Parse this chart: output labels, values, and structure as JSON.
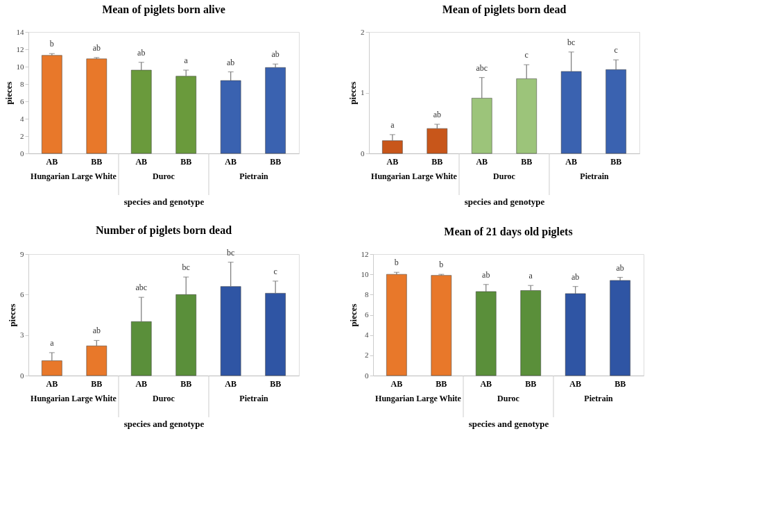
{
  "chart_data": [
    {
      "type": "bar",
      "title": "Mean of piglets born alive",
      "ylabel": "pieces",
      "xlabel": "species and genotype",
      "categories": [
        "AB",
        "BB",
        "AB",
        "BB",
        "AB",
        "BB"
      ],
      "values": [
        11.3,
        10.9,
        9.6,
        8.9,
        8.4,
        9.9
      ],
      "colors": [
        "#e8782a",
        "#e8782a",
        "#6a9a3c",
        "#6a9a3c",
        "#3a62b0",
        "#3a62b0"
      ],
      "errors": [
        [
          11.3,
          11.5
        ],
        [
          10.9,
          11.05
        ],
        [
          9.6,
          10.5
        ],
        [
          8.9,
          9.6
        ],
        [
          8.4,
          9.4
        ],
        [
          9.9,
          10.3
        ]
      ],
      "ylim": [
        0,
        14
      ],
      "yticks": [
        0,
        2,
        4,
        6,
        8,
        10,
        12,
        14
      ],
      "grid": false,
      "legend": false,
      "annotations": [
        "b",
        "ab",
        "ab",
        "a",
        "ab",
        "ab",
        "Hungarian Large White",
        "Duroc",
        "Pietrain"
      ]
    },
    {
      "type": "bar",
      "title": "Mean of piglets born dead",
      "ylabel": "pieces",
      "xlabel": "species and genotype",
      "categories": [
        "AB",
        "BB",
        "AB",
        "BB",
        "AB",
        "BB"
      ],
      "values": [
        0.21,
        0.41,
        0.91,
        1.23,
        1.35,
        1.38
      ],
      "colors": [
        "#c8561a",
        "#c8561a",
        "#9cc47a",
        "#9cc47a",
        "#3a62b0",
        "#3a62b0"
      ],
      "errors": [
        [
          0.21,
          0.31
        ],
        [
          0.41,
          0.48
        ],
        [
          0.91,
          1.25
        ],
        [
          1.23,
          1.46
        ],
        [
          1.35,
          1.67
        ],
        [
          1.38,
          1.54
        ]
      ],
      "ylim": [
        0,
        2
      ],
      "yticks": [
        0,
        1,
        2
      ],
      "grid": false,
      "legend": false,
      "annotations": [
        "a",
        "ab",
        "abc",
        "c",
        "bc",
        "c",
        "Hungarian Large White",
        "Duroc",
        "Pietrain"
      ]
    },
    {
      "type": "bar",
      "title": "Number of piglets born dead",
      "ylabel": "pieces",
      "xlabel": "species and genotype",
      "categories": [
        "AB",
        "BB",
        "AB",
        "BB",
        "AB",
        "BB"
      ],
      "values": [
        1.1,
        2.2,
        4.0,
        6.0,
        6.6,
        6.1
      ],
      "colors": [
        "#e8782a",
        "#e8782a",
        "#5a8f3a",
        "#5a8f3a",
        "#2f55a4",
        "#2f55a4"
      ],
      "errors": [
        [
          1.1,
          1.7
        ],
        [
          2.2,
          2.6
        ],
        [
          4.0,
          5.8
        ],
        [
          6.0,
          7.3
        ],
        [
          6.6,
          8.4
        ],
        [
          6.1,
          7.0
        ]
      ],
      "ylim": [
        0,
        9
      ],
      "yticks": [
        0,
        3,
        6,
        9
      ],
      "grid": false,
      "legend": false,
      "annotations": [
        "a",
        "ab",
        "abc",
        "bc",
        "bc",
        "c",
        "Hungarian Large White",
        "Duroc",
        "Pietrain"
      ]
    },
    {
      "type": "bar",
      "title": "Mean of 21 days old piglets",
      "ylabel": "pieces",
      "xlabel": "species and genotype",
      "categories": [
        "AB",
        "BB",
        "AB",
        "BB",
        "AB",
        "BB"
      ],
      "values": [
        10.0,
        9.9,
        8.3,
        8.4,
        8.1,
        9.4
      ],
      "colors": [
        "#e8782a",
        "#e8782a",
        "#5a8f3a",
        "#5a8f3a",
        "#2f55a4",
        "#2f55a4"
      ],
      "errors": [
        [
          10.0,
          10.2
        ],
        [
          9.9,
          10.0
        ],
        [
          8.3,
          9.0
        ],
        [
          8.4,
          8.9
        ],
        [
          8.1,
          8.8
        ],
        [
          9.4,
          9.7
        ]
      ],
      "ylim": [
        0,
        12
      ],
      "yticks": [
        0,
        2,
        4,
        6,
        8,
        10,
        12
      ],
      "grid": false,
      "legend": false,
      "annotations": [
        "b",
        "b",
        "ab",
        "a",
        "ab",
        "ab",
        "Hungarian Large White",
        "Duroc",
        "Pietrain"
      ]
    }
  ]
}
